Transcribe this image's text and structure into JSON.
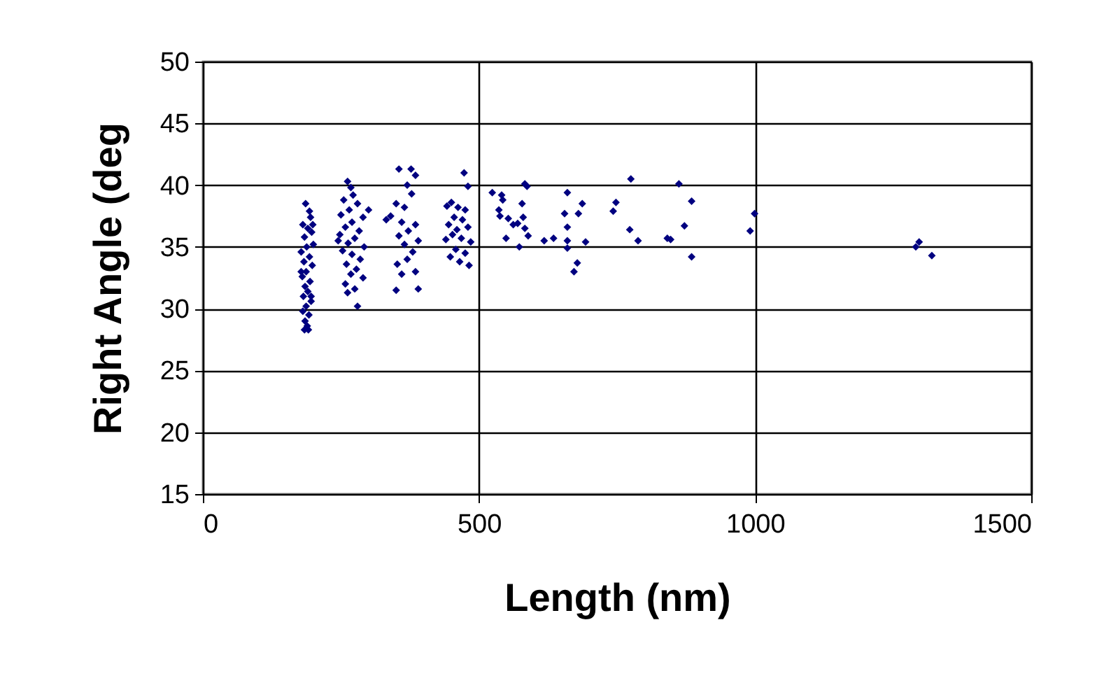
{
  "chart_data": {
    "type": "scatter",
    "xlabel": "Length (nm)",
    "ylabel": "Right Angle (deg",
    "xlim": [
      0,
      1500
    ],
    "xticks": [
      0,
      500,
      1000,
      1500
    ],
    "ylim": [
      15,
      50
    ],
    "yticks": [
      15,
      20,
      25,
      30,
      35,
      40,
      45,
      50
    ],
    "grid": true,
    "marker": "diamond",
    "series": [
      {
        "color": "#000080",
        "x": [
          186,
          193,
          195,
          181,
          190,
          197,
          184,
          200,
          188,
          178,
          193,
          183,
          198,
          187,
          180,
          194,
          185,
          190,
          182,
          196,
          187,
          181,
          192,
          185,
          189,
          184,
          191,
          199,
          178,
          196,
          262,
          268,
          272,
          255,
          280,
          265,
          250,
          290,
          270,
          258,
          283,
          248,
          275,
          263,
          292,
          253,
          270,
          285,
          260,
          278,
          268,
          290,
          258,
          275,
          262,
          280,
          300,
          245,
          355,
          377,
          385,
          370,
          378,
          350,
          365,
          340,
          332,
          360,
          385,
          372,
          355,
          390,
          365,
          380,
          370,
          352,
          385,
          360,
          350,
          390,
          442,
          450,
          462,
          475,
          455,
          470,
          445,
          460,
          480,
          452,
          468,
          485,
          440,
          458,
          475,
          448,
          465,
          482,
          473,
          480,
          524,
          541,
          543,
          583,
          587,
          578,
          536,
          538,
          553,
          562,
          570,
          580,
          583,
          589,
          549,
          573,
          618,
          635,
          660,
          655,
          660,
          660,
          660,
          680,
          687,
          678,
          672,
          693,
          748,
          743,
          775,
          773,
          788,
          841,
          847,
          862,
          872,
          885,
          885,
          999,
          991,
          1297,
          1291,
          1320
        ],
        "values": [
          38.5,
          37.9,
          37.4,
          36.8,
          36.5,
          36.2,
          35.8,
          35.2,
          35.0,
          34.6,
          34.2,
          33.8,
          33.5,
          33.0,
          32.6,
          32.2,
          31.8,
          31.4,
          31.0,
          30.6,
          30.2,
          29.8,
          29.5,
          29.0,
          28.6,
          28.3,
          28.3,
          36.8,
          33.0,
          31.0,
          40.3,
          39.8,
          39.2,
          38.8,
          38.5,
          38.0,
          37.6,
          37.4,
          37.0,
          36.6,
          36.3,
          36.0,
          35.7,
          35.3,
          35.0,
          34.7,
          34.4,
          34.0,
          33.6,
          33.2,
          32.8,
          32.5,
          32.0,
          31.6,
          31.3,
          30.2,
          38.0,
          35.5,
          41.3,
          41.3,
          40.8,
          40.0,
          39.3,
          38.5,
          38.2,
          37.5,
          37.2,
          37.0,
          36.8,
          36.3,
          35.9,
          35.5,
          35.2,
          34.6,
          34.0,
          33.6,
          33.0,
          32.8,
          31.5,
          31.6,
          38.3,
          38.6,
          38.2,
          38.0,
          37.4,
          37.2,
          36.8,
          36.4,
          36.6,
          36.0,
          35.7,
          35.4,
          35.6,
          34.8,
          34.5,
          34.2,
          33.8,
          33.5,
          41.0,
          39.9,
          39.4,
          39.2,
          38.8,
          40.1,
          39.9,
          38.5,
          38.0,
          37.5,
          37.3,
          36.8,
          36.9,
          37.4,
          36.5,
          35.9,
          35.7,
          35.0,
          35.5,
          35.7,
          39.4,
          37.7,
          36.6,
          35.5,
          34.9,
          37.7,
          38.5,
          33.7,
          33.0,
          35.4,
          38.6,
          37.9,
          40.5,
          36.4,
          35.5,
          35.7,
          35.6,
          40.1,
          36.7,
          38.7,
          34.2,
          37.7,
          36.3,
          35.4,
          35.0,
          34.3
        ]
      }
    ]
  }
}
